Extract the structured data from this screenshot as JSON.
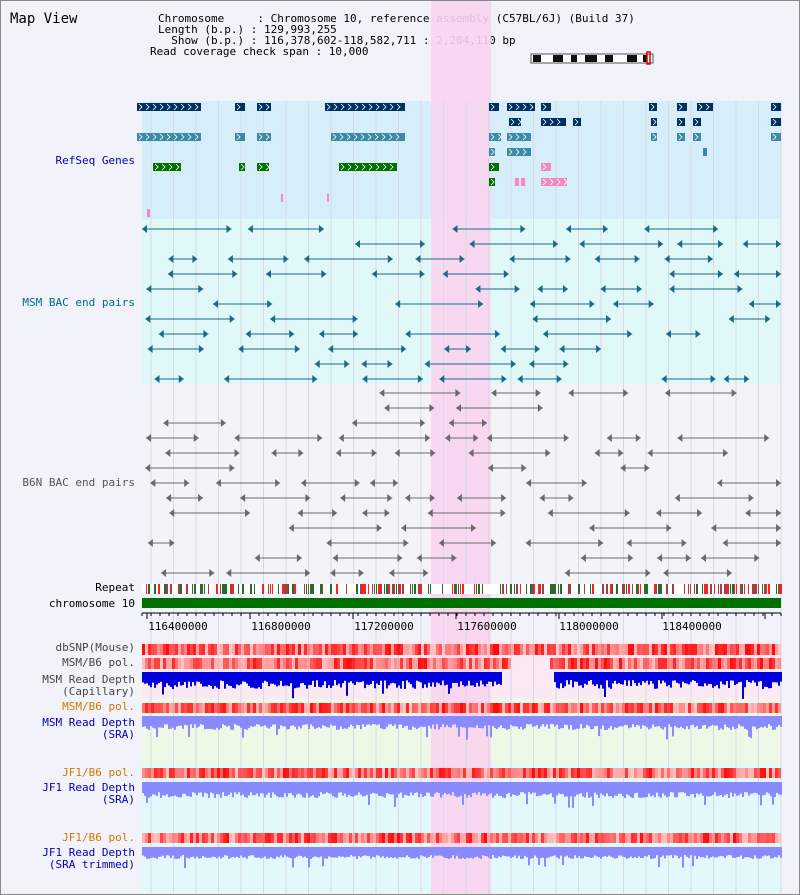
{
  "title": "Map View",
  "info": {
    "chromosome": "Chromosome     : Chromosome 10, reference assembly (C57BL/6J) (Build 37)",
    "length": "Length (b.p.) : 129,993,255",
    "show": "  Show (b.p.) : 116,378,602-118,582,711 : 2,204,110 bp",
    "coverage": "Read coverage check span : 10,000"
  },
  "tracks": {
    "refseq": {
      "label": "RefSeq Genes",
      "color": "#0000b4"
    },
    "msm_bac": {
      "label": "MSM BAC end pairs",
      "color": "#006a8a"
    },
    "b6n_bac": {
      "label": "B6N BAC end pairs",
      "color": "#555555"
    },
    "repeat": {
      "label": "Repeat"
    },
    "chromosome": {
      "label": "chromosome 10"
    },
    "dbsnp": {
      "label": "dbSNP(Mouse)"
    },
    "msm_pol": {
      "label": "MSM/B6 pol."
    },
    "msm_depth_cap": {
      "label": "MSM Read Depth\n(Capillary)"
    },
    "msm_pol_sra": {
      "label": "MSM/B6 pol.",
      "color": "#d07a00"
    },
    "msm_depth_sra": {
      "label": "MSM Read Depth\n(SRA)",
      "color": "#0000b4"
    },
    "jf1_pol_sra": {
      "label": "JF1/B6 pol.",
      "color": "#d07a00"
    },
    "jf1_depth_sra": {
      "label": "JF1 Read Depth\n(SRA)",
      "color": "#0000b4"
    },
    "jf1_pol_trim": {
      "label": "JF1/B6 pol.",
      "color": "#d07a00"
    },
    "jf1_depth_trim": {
      "label": "JF1 Read Depth\n(SRA trimmed)",
      "color": "#0000b4"
    }
  },
  "axis_ticks": [
    "116400000",
    "116800000",
    "117200000",
    "117600000",
    "118000000",
    "118400000"
  ],
  "colors": {
    "highlight": "#f9d4ee",
    "refseq_bg": "#d6eefa",
    "msm_bg": "#e0f8f8",
    "b6n_bg": "#f4f4f8",
    "chrom_green": "#007000",
    "depth_blue": "#0000dd",
    "depth_light": "#8a8aff"
  }
}
